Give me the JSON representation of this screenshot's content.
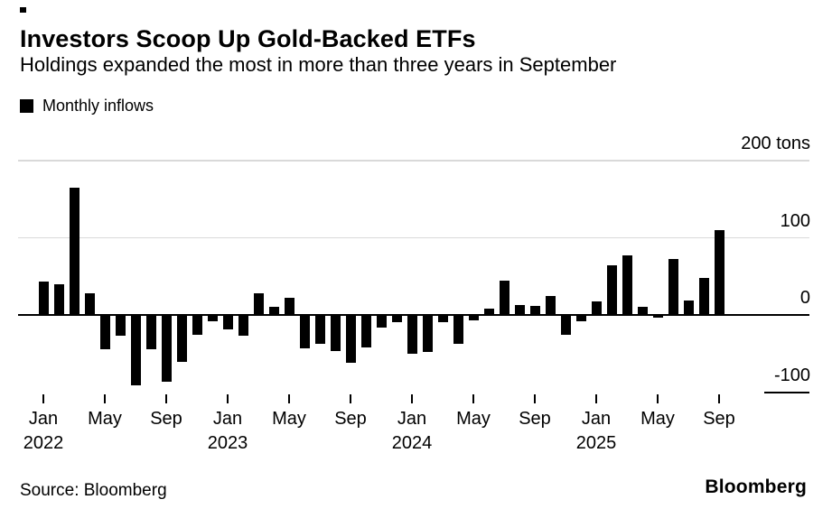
{
  "figure": {
    "title": "Investors Scoop Up Gold-Backed ETFs",
    "subtitle": "Holdings expanded the most in more than three years in September"
  },
  "footer": {
    "source": "Source: Bloomberg",
    "brand": "Bloomberg"
  },
  "colors": {
    "background": "#ffffff",
    "text": "#000000",
    "bar": "#000000",
    "gridline": "#d9d9d9",
    "axis": "#000000"
  },
  "chart_data": {
    "type": "bar",
    "title": "Investors Scoop Up Gold-Backed ETFs",
    "subtitle": "Holdings expanded the most in more than three years in September",
    "unit": "tons",
    "grid": "horizontal",
    "legend_position": "top-left",
    "ylim": [
      -100,
      200
    ],
    "categories": [
      "Jan 2022",
      "Feb 2022",
      "Mar 2022",
      "Apr 2022",
      "May 2022",
      "Jun 2022",
      "Jul 2022",
      "Aug 2022",
      "Sep 2022",
      "Oct 2022",
      "Nov 2022",
      "Dec 2022",
      "Jan 2023",
      "Feb 2023",
      "Mar 2023",
      "Apr 2023",
      "May 2023",
      "Jun 2023",
      "Jul 2023",
      "Aug 2023",
      "Sep 2023",
      "Oct 2023",
      "Nov 2023",
      "Dec 2023",
      "Jan 2024",
      "Feb 2024",
      "Mar 2024",
      "Apr 2024",
      "May 2024",
      "Jun 2024",
      "Jul 2024",
      "Aug 2024",
      "Sep 2024",
      "Oct 2024",
      "Nov 2024",
      "Dec 2024",
      "Jan 2025",
      "Feb 2025",
      "Mar 2025",
      "Apr 2025",
      "May 2025",
      "Jun 2025",
      "Jul 2025",
      "Aug 2025",
      "Sep 2025"
    ],
    "series": [
      {
        "name": "Monthly inflows",
        "color": "#000000",
        "values": [
          43,
          40,
          165,
          28,
          -45,
          -27,
          -91,
          -45,
          -86,
          -61,
          -26,
          -8,
          -19,
          -27,
          28,
          10,
          22,
          -43,
          -37,
          -47,
          -62,
          -42,
          -16,
          -9,
          -50,
          -48,
          -9,
          -37,
          -7,
          8,
          45,
          13,
          12,
          24,
          -26,
          -8,
          17,
          64,
          77,
          11,
          -4,
          72,
          19,
          48,
          110
        ]
      }
    ],
    "yticks": [
      {
        "value": 200,
        "label": "200 tons"
      },
      {
        "value": 100,
        "label": "100"
      },
      {
        "value": 0,
        "label": "0"
      },
      {
        "value": -100,
        "label": "-100"
      }
    ],
    "xticks": [
      {
        "index": 0,
        "label": "Jan",
        "year": "2022"
      },
      {
        "index": 4,
        "label": "May"
      },
      {
        "index": 8,
        "label": "Sep"
      },
      {
        "index": 12,
        "label": "Jan",
        "year": "2023"
      },
      {
        "index": 16,
        "label": "May"
      },
      {
        "index": 20,
        "label": "Sep"
      },
      {
        "index": 24,
        "label": "Jan",
        "year": "2024"
      },
      {
        "index": 28,
        "label": "May"
      },
      {
        "index": 32,
        "label": "Sep"
      },
      {
        "index": 36,
        "label": "Jan",
        "year": "2025"
      },
      {
        "index": 40,
        "label": "May"
      },
      {
        "index": 44,
        "label": "Sep"
      }
    ]
  }
}
